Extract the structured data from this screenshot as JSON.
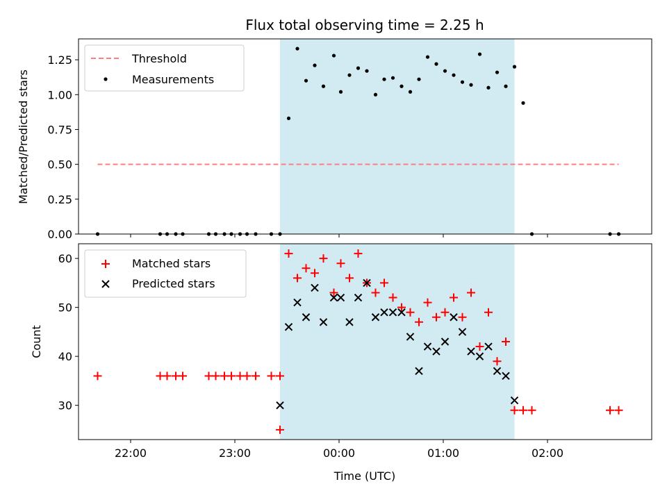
{
  "chart_data": [
    {
      "type": "scatter",
      "panel": "top",
      "title": "Flux total observing time = 2.25 h",
      "xlabel": "",
      "ylabel": "Matched/Predicted stars",
      "x_unit": "minutes relative to 00:00 UTC",
      "xlim": [
        -150,
        180
      ],
      "ylim": [
        0,
        1.4
      ],
      "yticks": [
        "0.00",
        "0.25",
        "0.50",
        "0.75",
        "1.00",
        "1.25"
      ],
      "ytick_values": [
        0,
        0.25,
        0.5,
        0.75,
        1.0,
        1.25
      ],
      "shaded_span": [
        -34,
        101
      ],
      "shade_color": "#add8e6",
      "legend_position": "top-left",
      "series": [
        {
          "name": "Threshold",
          "kind": "dashed-line",
          "color": "#ff7f7f",
          "x": [
            -139,
            161
          ],
          "y": [
            0.5,
            0.5
          ]
        },
        {
          "name": "Measurements",
          "kind": "dots",
          "color": "#000000",
          "x": [
            -139,
            -103,
            -99,
            -94,
            -90,
            -75,
            -71,
            -66,
            -62,
            -57,
            -53,
            -48,
            -39,
            -34,
            -29,
            -24,
            -19,
            -14,
            -9,
            -3,
            1,
            6,
            11,
            16,
            21,
            26,
            31,
            36,
            41,
            46,
            51,
            56,
            61,
            66,
            71,
            76,
            81,
            86,
            91,
            96,
            101,
            106,
            111,
            156,
            161
          ],
          "y": [
            0,
            0,
            0,
            0,
            0,
            0,
            0,
            0,
            0,
            0,
            0,
            0,
            0,
            0,
            0.83,
            1.33,
            1.1,
            1.21,
            1.06,
            1.28,
            1.02,
            1.14,
            1.19,
            1.17,
            1.0,
            1.11,
            1.12,
            1.06,
            1.02,
            1.11,
            1.27,
            1.22,
            1.17,
            1.14,
            1.09,
            1.07,
            1.29,
            1.05,
            1.16,
            1.06,
            1.2,
            0.94,
            0,
            0,
            0
          ]
        }
      ]
    },
    {
      "type": "scatter",
      "panel": "bottom",
      "title": "",
      "xlabel": "Time (UTC)",
      "ylabel": "Count",
      "x_unit": "minutes relative to 00:00 UTC",
      "xlim": [
        -150,
        180
      ],
      "ylim": [
        23,
        63
      ],
      "xticks": [
        "22:00",
        "23:00",
        "00:00",
        "01:00",
        "02:00"
      ],
      "xtick_values": [
        -120,
        -60,
        0,
        60,
        120
      ],
      "yticks": [
        "30",
        "40",
        "50",
        "60"
      ],
      "ytick_values": [
        30,
        40,
        50,
        60
      ],
      "shaded_span": [
        -34,
        101
      ],
      "shade_color": "#add8e6",
      "legend_position": "top-left",
      "series": [
        {
          "name": "Matched stars",
          "kind": "plus",
          "color": "#ff0000",
          "x": [
            -139,
            -103,
            -99,
            -94,
            -90,
            -75,
            -71,
            -66,
            -62,
            -57,
            -53,
            -48,
            -39,
            -34,
            -34,
            -29,
            -24,
            -19,
            -14,
            -9,
            -3,
            1,
            6,
            11,
            16,
            21,
            26,
            31,
            36,
            41,
            46,
            51,
            56,
            61,
            66,
            71,
            76,
            81,
            86,
            91,
            96,
            101,
            106,
            111,
            156,
            161
          ],
          "y": [
            36,
            36,
            36,
            36,
            36,
            36,
            36,
            36,
            36,
            36,
            36,
            36,
            36,
            36,
            25,
            61,
            56,
            58,
            57,
            60,
            53,
            59,
            56,
            61,
            55,
            53,
            55,
            52,
            50,
            49,
            47,
            51,
            48,
            49,
            52,
            48,
            53,
            42,
            49,
            39,
            43,
            29,
            29,
            29,
            29,
            29
          ]
        },
        {
          "name": "Predicted stars",
          "kind": "cross",
          "color": "#000000",
          "x": [
            -34,
            -29,
            -24,
            -19,
            -14,
            -9,
            -3,
            1,
            6,
            11,
            16,
            21,
            26,
            31,
            36,
            41,
            46,
            51,
            56,
            61,
            66,
            71,
            76,
            81,
            86,
            91,
            96,
            101
          ],
          "y": [
            30,
            46,
            51,
            48,
            54,
            47,
            52,
            52,
            47,
            52,
            55,
            48,
            49,
            49,
            49,
            44,
            37,
            42,
            41,
            43,
            48,
            45,
            41,
            40,
            42,
            37,
            36,
            31
          ]
        }
      ]
    }
  ]
}
